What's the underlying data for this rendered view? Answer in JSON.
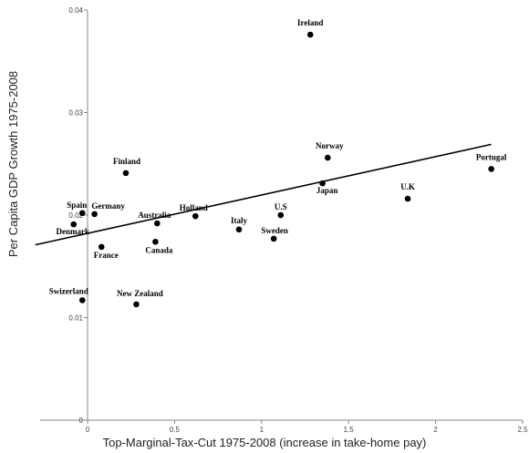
{
  "chart_data": {
    "type": "scatter",
    "title": "",
    "xlabel": "Top-Marginal-Tax-Cut  1975-2008 (increase in take-home pay)",
    "ylabel": "Per Capita GDP Growth 1975-2008",
    "xlim": [
      -0.3,
      2.5
    ],
    "ylim": [
      0,
      0.04
    ],
    "x_ticks": [
      {
        "value": 0,
        "label": "0"
      },
      {
        "value": 0.5,
        "label": "0.5"
      },
      {
        "value": 1,
        "label": "1"
      },
      {
        "value": 1.5,
        "label": "1.5"
      },
      {
        "value": 2,
        "label": "2"
      },
      {
        "value": 2.5,
        "label": "2.5"
      }
    ],
    "y_ticks": [
      {
        "value": 0,
        "label": "0"
      },
      {
        "value": 0.01,
        "label": "0.01"
      },
      {
        "value": 0.02,
        "label": "0.02"
      },
      {
        "value": 0.03,
        "label": "0.03"
      },
      {
        "value": 0.04,
        "label": "0.04"
      }
    ],
    "grid": false,
    "legend": "none",
    "points": [
      {
        "label": "Ireland",
        "x": 1.28,
        "y": 0.0376
      },
      {
        "label": "Norway",
        "x": 1.38,
        "y": 0.0256
      },
      {
        "label": "Portugal",
        "x": 2.32,
        "y": 0.0245
      },
      {
        "label": "Japan",
        "x": 1.35,
        "y": 0.0231
      },
      {
        "label": "U.K",
        "x": 1.84,
        "y": 0.0216
      },
      {
        "label": "Finland",
        "x": 0.22,
        "y": 0.0241
      },
      {
        "label": "Spain",
        "x": -0.03,
        "y": 0.0202
      },
      {
        "label": "Germany",
        "x": 0.04,
        "y": 0.0201
      },
      {
        "label": "Denmark",
        "x": -0.08,
        "y": 0.0191
      },
      {
        "label": "Australia",
        "x": 0.4,
        "y": 0.0192
      },
      {
        "label": "Holland",
        "x": 0.62,
        "y": 0.0199
      },
      {
        "label": "U.S",
        "x": 1.11,
        "y": 0.02
      },
      {
        "label": "Italy",
        "x": 0.87,
        "y": 0.0186
      },
      {
        "label": "Sweden",
        "x": 1.07,
        "y": 0.0177
      },
      {
        "label": "France",
        "x": 0.08,
        "y": 0.0169
      },
      {
        "label": "Canada",
        "x": 0.39,
        "y": 0.0174
      },
      {
        "label": "Swizerland",
        "x": -0.03,
        "y": 0.0117
      },
      {
        "label": "New Zealand",
        "x": 0.28,
        "y": 0.0113
      }
    ],
    "trendline": {
      "x": [
        -0.3,
        2.32
      ],
      "y": [
        0.0171,
        0.0269
      ]
    },
    "colors": {
      "marker": "#000000",
      "line": "#000000",
      "axis": "#888888"
    }
  }
}
